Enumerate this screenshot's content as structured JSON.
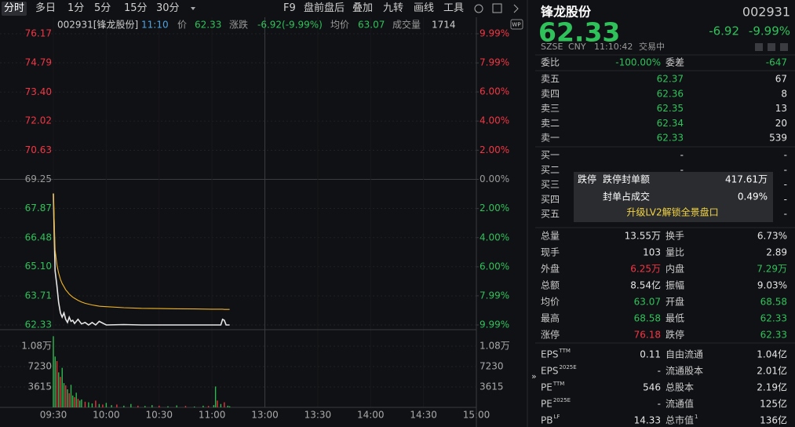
{
  "toolbar": {
    "periods": [
      "分时",
      "多日",
      "1分",
      "5分",
      "15分",
      "30分"
    ],
    "tools": [
      "F9",
      "盘前盘后",
      "叠加",
      "九转",
      "画线",
      "工具"
    ]
  },
  "chart_data": [
    {
      "type": "line",
      "info": [
        "002931[锋龙股份]",
        "11:10",
        "价",
        "62.33",
        "涨跌",
        "-6.92(-9.99%)",
        "均价",
        "63.07",
        "成交量",
        "1714"
      ],
      "x": [
        0,
        1,
        2,
        3,
        4,
        5,
        6,
        7,
        8,
        9,
        10,
        11,
        12,
        14,
        16,
        18,
        20,
        22,
        24,
        26,
        30,
        40,
        50,
        60,
        70,
        80,
        90,
        95,
        96,
        97,
        98,
        100
      ],
      "xlim": [
        0,
        240
      ],
      "xticks": [
        {
          "value": 0,
          "label": "09:30"
        },
        {
          "value": 30,
          "label": "10:00"
        },
        {
          "value": 60,
          "label": "10:30"
        },
        {
          "value": 90,
          "label": "11:00"
        },
        {
          "value": 120,
          "label": "13:00"
        },
        {
          "value": 150,
          "label": "13:30"
        },
        {
          "value": 180,
          "label": "14:00"
        },
        {
          "value": 210,
          "label": "14:30"
        },
        {
          "value": 240,
          "label": "15:00"
        }
      ],
      "series": [
        {
          "name": "价",
          "color": "#e6e6e6",
          "values": [
            68.58,
            64.9,
            64.2,
            63.4,
            62.9,
            62.7,
            62.9,
            62.6,
            62.45,
            62.7,
            62.5,
            62.55,
            62.4,
            62.6,
            62.38,
            62.45,
            62.33,
            62.45,
            62.33,
            62.5,
            62.33,
            62.35,
            62.33,
            62.33,
            62.33,
            62.33,
            62.33,
            62.33,
            62.6,
            62.55,
            62.33,
            62.33
          ]
        },
        {
          "name": "均价",
          "color": "#f0b429",
          "values": [
            68.58,
            65.9,
            65.2,
            64.8,
            64.5,
            64.3,
            64.15,
            64.0,
            63.9,
            63.8,
            63.72,
            63.65,
            63.6,
            63.5,
            63.42,
            63.36,
            63.32,
            63.28,
            63.25,
            63.22,
            63.2,
            63.15,
            63.12,
            63.11,
            63.1,
            63.09,
            63.08,
            63.08,
            63.08,
            63.07,
            63.07,
            63.07
          ]
        }
      ],
      "ylim": [
        62.33,
        76.17
      ],
      "yticks": [
        76.17,
        74.79,
        {
          "value": 73.4,
          "label": "73.40"
        },
        72.02,
        70.63,
        69.25,
        67.87,
        66.48,
        {
          "value": 65.1,
          "label": "65.10"
        },
        63.71,
        62.33
      ],
      "y2lim": [
        -9.99,
        9.99
      ],
      "y2ticks": [
        {
          "value": 9.99,
          "label": "9.99%"
        },
        {
          "value": 7.99,
          "label": "7.99%"
        },
        {
          "value": 6,
          "label": "6.00%"
        },
        {
          "value": 4,
          "label": "4.00%"
        },
        {
          "value": 2,
          "label": "2.00%"
        },
        {
          "value": 0,
          "label": "0.00%"
        },
        {
          "value": -2,
          "label": "2.00%"
        },
        {
          "value": -4,
          "label": "4.00%"
        },
        {
          "value": -6,
          "label": "6.00%"
        },
        {
          "value": -7.99,
          "label": "7.99%"
        },
        {
          "value": -9.99,
          "label": "9.99%"
        }
      ],
      "grid": true
    },
    {
      "type": "bar",
      "x": [
        0,
        1,
        2,
        3,
        4,
        5,
        6,
        7,
        8,
        9,
        10,
        11,
        12,
        13,
        14,
        15,
        16,
        18,
        20,
        22,
        24,
        26,
        28,
        30,
        33,
        36,
        40,
        44,
        48,
        52,
        56,
        60,
        65,
        70,
        75,
        80,
        85,
        88,
        91,
        92,
        93,
        95,
        97,
        99,
        100
      ],
      "values": [
        12600,
        9000,
        8200,
        6200,
        5400,
        7000,
        4300,
        3900,
        3200,
        2500,
        4000,
        2100,
        1800,
        2600,
        1500,
        1200,
        1400,
        1000,
        900,
        700,
        1200,
        600,
        500,
        800,
        400,
        500,
        300,
        600,
        300,
        250,
        400,
        300,
        200,
        350,
        250,
        150,
        300,
        250,
        400,
        3700,
        1200,
        600,
        900,
        300,
        200
      ],
      "colors": [
        "#2fb84f",
        "#2fb84f",
        "#e8333c",
        "#2fb84f",
        "#e8333c",
        "#2fb84f",
        "#2fb84f",
        "#e8333c",
        "#2fb84f",
        "#e8333c",
        "#2fb84f",
        "#2fb84f",
        "#e8333c",
        "#2fb84f",
        "#e8333c",
        "#2fb84f",
        "#2fb84f",
        "#e8333c",
        "#2fb84f",
        "#2fb84f",
        "#e8333c",
        "#2fb84f",
        "#e8333c",
        "#2fb84f",
        "#2fb84f",
        "#e8333c",
        "#2fb84f",
        "#2fb84f",
        "#e8333c",
        "#2fb84f",
        "#2fb84f",
        "#e8333c",
        "#2fb84f",
        "#2fb84f",
        "#e8333c",
        "#2fb84f",
        "#2fb84f",
        "#e8333c",
        "#2fb84f",
        "#2fb84f",
        "#e8333c",
        "#2fb84f",
        "#e8333c",
        "#2fb84f",
        "#2fb84f"
      ],
      "xlim": [
        0,
        240
      ],
      "ylim": [
        0,
        12650
      ],
      "yticks": [
        {
          "value": 10845,
          "label": "1.08万"
        },
        7230,
        3615
      ],
      "grid": true
    }
  ],
  "quote": {
    "name": "锋龙股份",
    "code": "002931",
    "price": "62.33",
    "change": "-6.92",
    "change_pct": "-9.99%",
    "meta": [
      "SZSE",
      "CNY",
      "11:10:42",
      "交易中"
    ]
  },
  "order_book": {
    "ratio": [
      "委比",
      "-100.00%",
      "委差",
      "-647"
    ],
    "asks": [
      [
        "卖五",
        "62.37",
        "67"
      ],
      [
        "卖四",
        "62.36",
        "8"
      ],
      [
        "卖三",
        "62.35",
        "13"
      ],
      [
        "卖二",
        "62.34",
        "20"
      ],
      [
        "卖一",
        "62.33",
        "539"
      ]
    ],
    "bids": [
      [
        "买一",
        "-",
        "-"
      ],
      [
        "买二",
        "-",
        "-"
      ],
      [
        "买三",
        "-",
        "-"
      ],
      [
        "买四",
        "-",
        "-"
      ],
      [
        "买五",
        "-",
        "-"
      ]
    ]
  },
  "lv2_overlay": {
    "tag": "跌停",
    "rows": [
      [
        "跌停封单额",
        "417.61万"
      ],
      [
        "封单占成交",
        "0.49%"
      ]
    ],
    "cta": "升级LV2解锁全景盘口"
  },
  "stats": {
    "rows": [
      [
        "总量",
        "13.55万",
        "换手",
        "6.73%"
      ],
      [
        "现手",
        "103",
        "量比",
        "2.89"
      ],
      [
        "外盘",
        "6.25万",
        "内盘",
        "7.29万"
      ],
      [
        "总额",
        "8.54亿",
        "振幅",
        "9.03%"
      ],
      [
        "均价",
        "63.07",
        "开盘",
        "68.58"
      ],
      [
        "最高",
        "68.58",
        "最低",
        "62.33"
      ],
      [
        "涨停",
        "76.18",
        "跌停",
        "62.33"
      ]
    ],
    "tones": [
      [
        "flat",
        "flat"
      ],
      [
        "flat",
        "flat"
      ],
      [
        "up",
        "down"
      ],
      [
        "flat",
        "flat"
      ],
      [
        "down",
        "down"
      ],
      [
        "down",
        "down"
      ],
      [
        "up",
        "down"
      ]
    ]
  },
  "fundamentals": {
    "rows": [
      [
        {
          "label": "EPS",
          "sup": "TTM"
        },
        "0.11",
        {
          "label": "自由流通"
        },
        "1.04亿"
      ],
      [
        {
          "label": "EPS",
          "sup": "2025E"
        },
        "-",
        {
          "label": "流通股本"
        },
        "2.01亿"
      ],
      [
        {
          "label": "PE",
          "sup": "TTM"
        },
        "546",
        {
          "label": "总股本"
        },
        "2.19亿"
      ],
      [
        {
          "label": "PE",
          "sup": "2025E"
        },
        "-",
        {
          "label": "流通值"
        },
        "125亿"
      ],
      [
        {
          "label": "PB",
          "sup": "LF"
        },
        "14.33",
        {
          "label": "总市值",
          "sup": "1"
        },
        "136亿"
      ]
    ]
  }
}
